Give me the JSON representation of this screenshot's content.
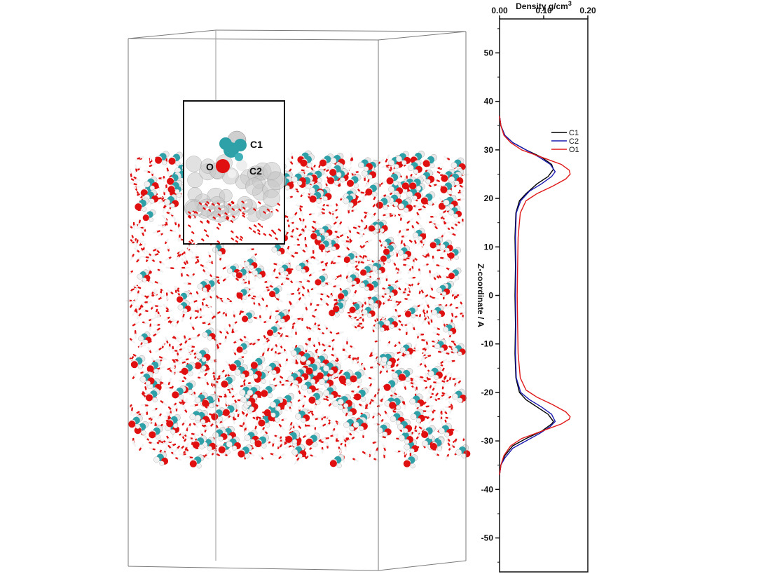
{
  "snapshot": {
    "inset_labels": [
      "C1",
      "O",
      "C2"
    ],
    "colors": {
      "oxygen": "#e01010",
      "carbon": "#2ea0a8",
      "hydrogen": "#f2f2f2",
      "box_edge": "#7a7a7a"
    }
  },
  "chart_data": {
    "type": "line",
    "title": "",
    "xlabel": "Density g/cm",
    "xlabel_superscript": "3",
    "ylabel": "Z-coordinate / A",
    "xlim": [
      0,
      0.2
    ],
    "ylim": [
      -57,
      57
    ],
    "x_ticks": [
      0.0,
      0.1,
      0.2
    ],
    "x_tick_labels": [
      "0.00",
      "0.10",
      "0.20"
    ],
    "y_ticks": [
      -50,
      -40,
      -30,
      -20,
      -10,
      0,
      10,
      20,
      30,
      40,
      50
    ],
    "y_tick_labels": [
      "-50",
      "-40",
      "-30",
      "-20",
      "-10",
      "0",
      "10",
      "20",
      "30",
      "40",
      "50"
    ],
    "x_axis_position": "top",
    "grid": false,
    "legend_position": "top-right",
    "series": [
      {
        "name": "C1",
        "color": "#000000",
        "points": [
          [
            0,
            -37
          ],
          [
            0.003,
            -35
          ],
          [
            0.012,
            -33
          ],
          [
            0.03,
            -31
          ],
          [
            0.06,
            -29.5
          ],
          [
            0.095,
            -28
          ],
          [
            0.118,
            -26.5
          ],
          [
            0.122,
            -26
          ],
          [
            0.11,
            -24.5
          ],
          [
            0.085,
            -23
          ],
          [
            0.06,
            -21.5
          ],
          [
            0.045,
            -20
          ],
          [
            0.037,
            -17
          ],
          [
            0.035,
            -12
          ],
          [
            0.036,
            -6
          ],
          [
            0.035,
            0
          ],
          [
            0.036,
            6
          ],
          [
            0.035,
            12
          ],
          [
            0.037,
            17
          ],
          [
            0.045,
            19.5
          ],
          [
            0.06,
            21
          ],
          [
            0.085,
            23
          ],
          [
            0.11,
            24.5
          ],
          [
            0.122,
            26
          ],
          [
            0.118,
            27
          ],
          [
            0.095,
            28.5
          ],
          [
            0.06,
            30
          ],
          [
            0.03,
            31.5
          ],
          [
            0.012,
            33
          ],
          [
            0.003,
            35
          ],
          [
            0,
            37
          ]
        ]
      },
      {
        "name": "C2",
        "color": "#1a1ab0",
        "points": [
          [
            0,
            -37
          ],
          [
            0.003,
            -35
          ],
          [
            0.012,
            -33.5
          ],
          [
            0.03,
            -31.5
          ],
          [
            0.06,
            -30
          ],
          [
            0.09,
            -28.5
          ],
          [
            0.115,
            -27
          ],
          [
            0.126,
            -26
          ],
          [
            0.118,
            -24.5
          ],
          [
            0.095,
            -23
          ],
          [
            0.068,
            -21.5
          ],
          [
            0.048,
            -20
          ],
          [
            0.038,
            -17
          ],
          [
            0.036,
            -12
          ],
          [
            0.037,
            -6
          ],
          [
            0.036,
            0
          ],
          [
            0.037,
            6
          ],
          [
            0.036,
            12
          ],
          [
            0.038,
            17
          ],
          [
            0.048,
            19.5
          ],
          [
            0.068,
            21.5
          ],
          [
            0.095,
            23
          ],
          [
            0.118,
            24.5
          ],
          [
            0.126,
            25.5
          ],
          [
            0.115,
            27
          ],
          [
            0.09,
            28.5
          ],
          [
            0.06,
            30
          ],
          [
            0.03,
            31.5
          ],
          [
            0.012,
            33
          ],
          [
            0.003,
            35
          ],
          [
            0,
            37
          ]
        ]
      },
      {
        "name": "O1",
        "color": "#e01a1a",
        "points": [
          [
            0,
            -37
          ],
          [
            0.003,
            -35
          ],
          [
            0.01,
            -33
          ],
          [
            0.025,
            -31
          ],
          [
            0.05,
            -29.5
          ],
          [
            0.08,
            -28.5
          ],
          [
            0.11,
            -27.5
          ],
          [
            0.14,
            -26.5
          ],
          [
            0.158,
            -25.5
          ],
          [
            0.16,
            -25
          ],
          [
            0.15,
            -24
          ],
          [
            0.12,
            -22.5
          ],
          [
            0.085,
            -21
          ],
          [
            0.06,
            -19.5
          ],
          [
            0.047,
            -17
          ],
          [
            0.042,
            -12
          ],
          [
            0.041,
            -6
          ],
          [
            0.04,
            0
          ],
          [
            0.041,
            6
          ],
          [
            0.042,
            12
          ],
          [
            0.047,
            17
          ],
          [
            0.06,
            19.5
          ],
          [
            0.085,
            21
          ],
          [
            0.12,
            22.5
          ],
          [
            0.15,
            24
          ],
          [
            0.16,
            25
          ],
          [
            0.158,
            25.8
          ],
          [
            0.14,
            27
          ],
          [
            0.11,
            28
          ],
          [
            0.08,
            29
          ],
          [
            0.05,
            30
          ],
          [
            0.025,
            31.5
          ],
          [
            0.01,
            33
          ],
          [
            0.003,
            35
          ],
          [
            0,
            37
          ]
        ]
      }
    ]
  }
}
